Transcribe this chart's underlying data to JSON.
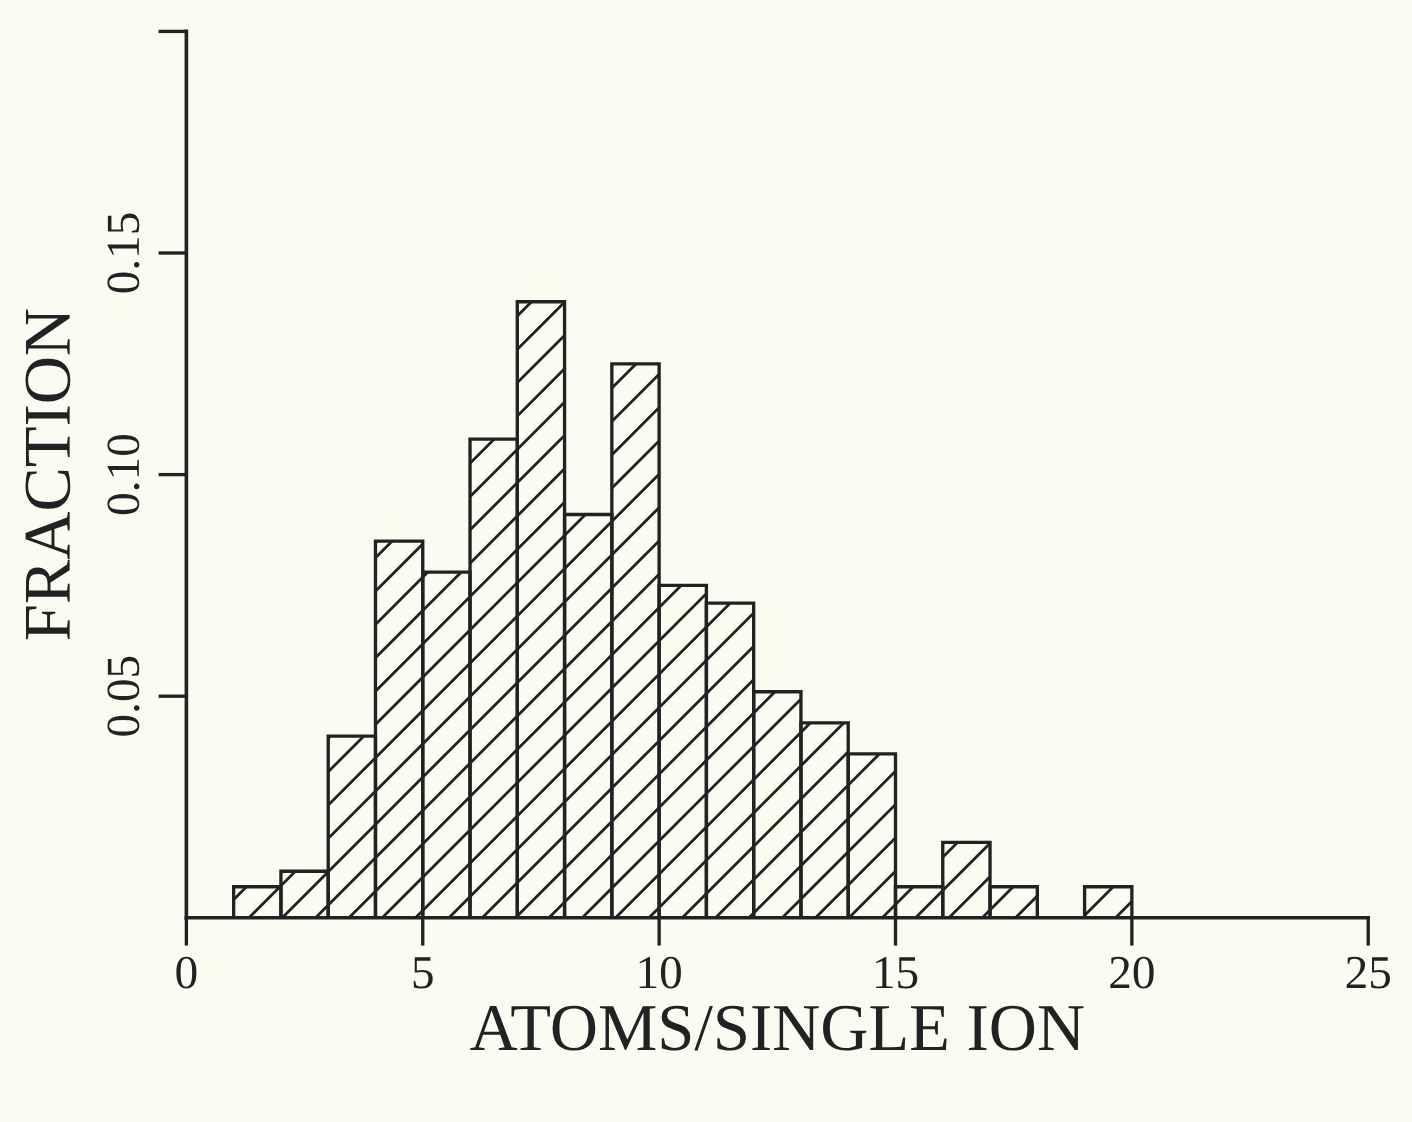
{
  "chart_data": {
    "type": "histogram",
    "xlabel": "ATOMS/SINGLE ION",
    "ylabel": "FRACTION",
    "bins": [
      1,
      2,
      3,
      4,
      5,
      6,
      7,
      8,
      9,
      10,
      11,
      12,
      13,
      14,
      15,
      16,
      17,
      18,
      19,
      20
    ],
    "values": [
      0.007,
      0.0105,
      0.041,
      0.085,
      0.078,
      0.108,
      0.139,
      0.091,
      0.125,
      0.075,
      0.071,
      0.051,
      0.044,
      0.037,
      0.007,
      0.017,
      0.007,
      0,
      0.007
    ],
    "color": "#222222",
    "xlim": [
      0,
      25
    ],
    "xticks": [
      0,
      5,
      10,
      15,
      20,
      25
    ],
    "ylim": [
      0,
      0.2
    ],
    "yticks": [
      {
        "value": 0.05,
        "label": "0.05"
      },
      {
        "value": 0.1,
        "label": "0.10"
      },
      {
        "value": 0.15,
        "label": "0.15"
      },
      {
        "value": 0.2,
        "label": null
      }
    ],
    "grid": false,
    "legend": false
  }
}
